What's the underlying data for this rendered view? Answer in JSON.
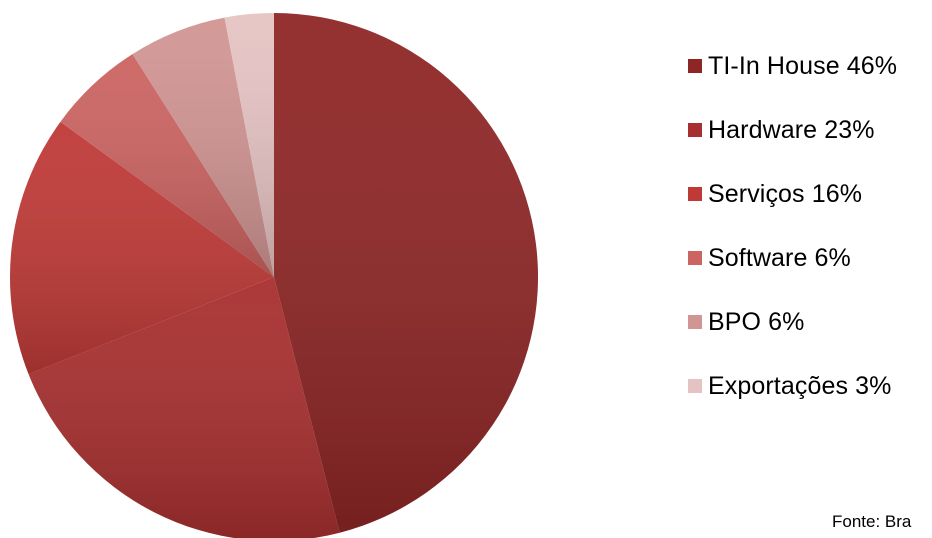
{
  "chart_data": {
    "type": "pie",
    "categories": [
      "TI-In House",
      "Hardware",
      "Serviços",
      "Software",
      "BPO",
      "Exportações"
    ],
    "values": [
      46,
      23,
      16,
      6,
      6,
      3
    ],
    "legend_labels": [
      "TI-In House 46%",
      "Hardware 23%",
      "Serviços 16%",
      "Software 6%",
      "BPO 6%",
      "Exportações 3%"
    ],
    "colors": [
      "#8f2626",
      "#a82f2f",
      "#bf3a37",
      "#cc6462",
      "#d19593",
      "#e6c3c3"
    ],
    "title": "",
    "legend_position": "right",
    "source": "Fonte: Bra"
  }
}
